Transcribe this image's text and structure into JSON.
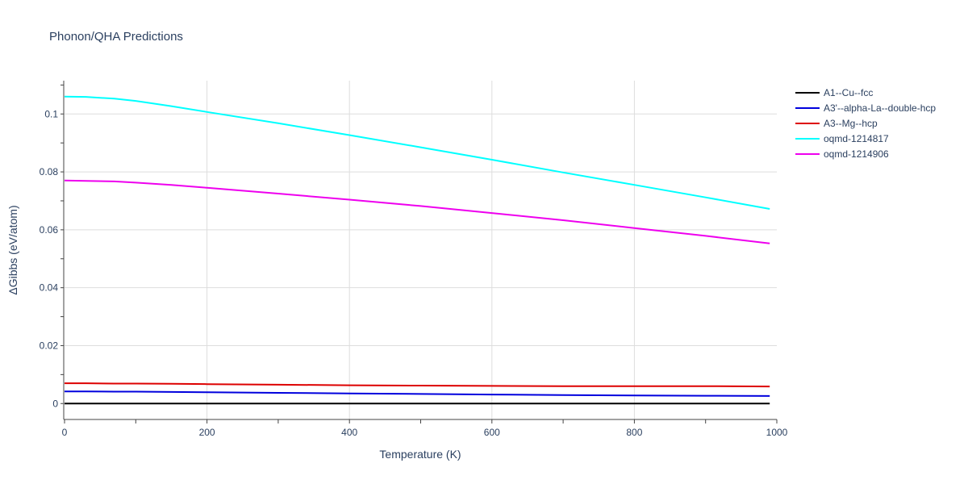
{
  "chart_data": {
    "type": "line",
    "title": "Phonon/QHA Predictions",
    "xlabel": "Temperature (K)",
    "ylabel": "ΔGibbs (eV/atom)",
    "xlim": [
      0,
      1000
    ],
    "ylim": [
      -0.0055,
      0.1115
    ],
    "x_ticks": [
      0,
      200,
      400,
      600,
      800,
      1000
    ],
    "x_tick_labels": [
      "0",
      "200",
      "400",
      "600",
      "800",
      "1000"
    ],
    "y_ticks": [
      0,
      0.02,
      0.04,
      0.06,
      0.08,
      0.1
    ],
    "y_tick_labels": [
      "0",
      "0.02",
      "0.04",
      "0.06",
      "0.08",
      "0.1"
    ],
    "grid": true,
    "legend_position": "top-right-outside",
    "x": [
      0,
      30,
      70,
      100,
      150,
      200,
      300,
      400,
      500,
      600,
      700,
      800,
      900,
      990
    ],
    "series": [
      {
        "name": "A1--Cu--fcc",
        "color": "#000000",
        "values": [
          0,
          0,
          0,
          0,
          0,
          0,
          0,
          0,
          0,
          0,
          0,
          0,
          0,
          0
        ]
      },
      {
        "name": "A3'--alpha-La--double-hcp",
        "color": "#0000dd",
        "values": [
          0.0042,
          0.0042,
          0.0041,
          0.0041,
          0.004,
          0.0039,
          0.0037,
          0.0035,
          0.0033,
          0.0031,
          0.0029,
          0.0028,
          0.0027,
          0.0026
        ]
      },
      {
        "name": "A3--Mg--hcp",
        "color": "#dd0000",
        "values": [
          0.007,
          0.007,
          0.0069,
          0.0069,
          0.0068,
          0.0067,
          0.0065,
          0.0063,
          0.0062,
          0.0061,
          0.006,
          0.006,
          0.006,
          0.0059
        ]
      },
      {
        "name": "oqmd-1214817",
        "color": "#00ffff",
        "values": [
          0.106,
          0.1059,
          0.1053,
          0.1045,
          0.1027,
          0.1007,
          0.0968,
          0.0927,
          0.0885,
          0.0842,
          0.0798,
          0.0755,
          0.0712,
          0.0672
        ]
      },
      {
        "name": "oqmd-1214906",
        "color": "#ee00ee",
        "values": [
          0.077,
          0.0769,
          0.0767,
          0.0763,
          0.0755,
          0.0745,
          0.0725,
          0.0704,
          0.0682,
          0.0658,
          0.0633,
          0.0606,
          0.0579,
          0.0553
        ]
      }
    ]
  }
}
